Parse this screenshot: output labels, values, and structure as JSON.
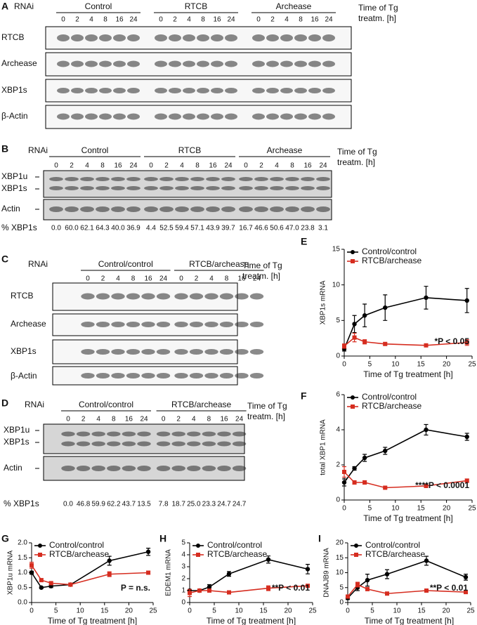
{
  "panels": {
    "A": {
      "letter": "A",
      "rnai": "RNAi",
      "groups": [
        "Control",
        "RTCB",
        "Archease"
      ],
      "times": [
        "0",
        "2",
        "4",
        "8",
        "16",
        "24"
      ],
      "time_label": [
        "Time of Tg",
        "treatm. [h]"
      ],
      "rows": [
        "RTCB",
        "Archease",
        "XBP1s",
        "β-Actin"
      ]
    },
    "B": {
      "letter": "B",
      "rnai": "RNAi",
      "groups": [
        "Control",
        "RTCB",
        "Archease"
      ],
      "times": [
        "0",
        "2",
        "4",
        "8",
        "16",
        "24"
      ],
      "time_label": [
        "Time of Tg",
        "treatm. [h]"
      ],
      "rows": [
        "XBP1u",
        "XBP1s",
        "Actin"
      ],
      "percent_label": "% XBP1s",
      "percent": [
        "0.0",
        "60.0",
        "62.1",
        "64.3",
        "40.0",
        "36.9",
        "4.4",
        "52.5",
        "59.4",
        "57.1",
        "43.9",
        "39.7",
        "16.7",
        "46.6",
        "50.6",
        "47.0",
        "23.8",
        "3.1"
      ]
    },
    "C": {
      "letter": "C",
      "rnai": "RNAi",
      "groups": [
        "Control/control",
        "RTCB/archease"
      ],
      "times": [
        "0",
        "2",
        "4",
        "8",
        "16",
        "24"
      ],
      "time_label": [
        "Time of Tg",
        "treatm. [h]"
      ],
      "rows": [
        "RTCB",
        "Archease",
        "XBP1s",
        "β-Actin"
      ]
    },
    "D": {
      "letter": "D",
      "rnai": "RNAi",
      "groups": [
        "Control/control",
        "RTCB/archease"
      ],
      "times": [
        "0",
        "2",
        "4",
        "8",
        "16",
        "24"
      ],
      "time_label": [
        "Time of Tg",
        "treatm. [h]"
      ],
      "rows": [
        "XBP1u",
        "XBP1s",
        "Actin"
      ],
      "percent_label": "% XBP1s",
      "percent": [
        "0.0",
        "46.8",
        "59.9",
        "62.2",
        "43.7",
        "13.5",
        "7.8",
        "18.7",
        "25.0",
        "23.3",
        "24.7",
        "24.7"
      ]
    }
  },
  "chart_data": [
    {
      "type": "line",
      "letter": "E",
      "x": [
        0,
        2,
        4,
        8,
        16,
        24
      ],
      "xlim": [
        0,
        25
      ],
      "xticks": [
        0,
        5,
        10,
        15,
        20,
        25
      ],
      "ylim": [
        0,
        15
      ],
      "yticks": [
        0,
        5,
        10,
        15
      ],
      "x_label": "Time of Tg treatment [h]",
      "y_label": "XBP1s mRNA",
      "annotation": "*P < 0.05",
      "series": [
        {
          "name": "Control/control",
          "color": "#000000",
          "marker": "circle",
          "values": [
            1.0,
            4.5,
            5.7,
            6.8,
            8.2,
            7.8
          ],
          "errors": [
            0.3,
            1.2,
            1.6,
            1.8,
            1.6,
            1.7
          ]
        },
        {
          "name": "RTCB/archease",
          "color": "#d62d20",
          "marker": "square",
          "values": [
            1.4,
            2.6,
            2.0,
            1.7,
            1.5,
            1.9
          ],
          "errors": [
            0.3,
            0.6,
            0.3,
            0.2,
            0.2,
            0.4
          ]
        }
      ]
    },
    {
      "type": "line",
      "letter": "F",
      "x": [
        0,
        2,
        4,
        8,
        16,
        24
      ],
      "xlim": [
        0,
        25
      ],
      "xticks": [
        0,
        5,
        10,
        15,
        20,
        25
      ],
      "ylim": [
        0,
        6
      ],
      "yticks": [
        0,
        2,
        4,
        6
      ],
      "x_label": "Time of Tg treatment [h]",
      "y_label": "total XBP1 mRNA",
      "annotation": "****P < 0.0001",
      "series": [
        {
          "name": "Control/control",
          "color": "#000000",
          "marker": "circle",
          "values": [
            1.0,
            1.8,
            2.4,
            2.8,
            4.0,
            3.6
          ],
          "errors": [
            0.2,
            0.1,
            0.2,
            0.2,
            0.3,
            0.2
          ]
        },
        {
          "name": "RTCB/archease",
          "color": "#d62d20",
          "marker": "square",
          "values": [
            1.6,
            1.0,
            1.0,
            0.7,
            0.8,
            1.1
          ],
          "errors": [
            0.3,
            0.1,
            0.1,
            0.05,
            0.05,
            0.1
          ]
        }
      ]
    },
    {
      "type": "line",
      "letter": "G",
      "x": [
        0,
        2,
        4,
        8,
        16,
        24
      ],
      "xlim": [
        0,
        25
      ],
      "xticks": [
        0,
        5,
        10,
        15,
        20,
        25
      ],
      "ylim": [
        0,
        2
      ],
      "yticks": [
        {
          "value": 0,
          "label": "0.0"
        },
        {
          "value": 0.5,
          "label": "0.5"
        },
        {
          "value": 1,
          "label": "1.0"
        },
        {
          "value": 1.5,
          "label": "1.5"
        },
        {
          "value": 2,
          "label": "2.0"
        }
      ],
      "x_label": "Time of Tg treatment [h]",
      "y_label": "XBP1u mRNA",
      "annotation": "P = n.s.",
      "series": [
        {
          "name": "Control/control",
          "color": "#000000",
          "marker": "circle",
          "values": [
            1.0,
            0.5,
            0.55,
            0.6,
            1.4,
            1.7
          ],
          "errors": [
            0.05,
            0.03,
            0.05,
            0.05,
            0.15,
            0.12
          ]
        },
        {
          "name": "RTCB/archease",
          "color": "#d62d20",
          "marker": "square",
          "values": [
            1.25,
            0.75,
            0.65,
            0.6,
            0.95,
            1.0
          ],
          "errors": [
            0.1,
            0.05,
            0.05,
            0.05,
            0.08,
            0.05
          ]
        }
      ]
    },
    {
      "type": "line",
      "letter": "H",
      "x": [
        0,
        2,
        4,
        8,
        16,
        24
      ],
      "xlim": [
        0,
        25
      ],
      "xticks": [
        0,
        5,
        10,
        15,
        20,
        25
      ],
      "ylim": [
        0,
        5
      ],
      "yticks": [
        0,
        1,
        2,
        3,
        4,
        5
      ],
      "x_label": "Time of Tg treatment [h]",
      "y_label": "EDEM1 mRNA",
      "annotation": "**P < 0.01",
      "series": [
        {
          "name": "Control/control",
          "color": "#000000",
          "marker": "circle",
          "values": [
            1.0,
            1.0,
            1.3,
            2.4,
            3.6,
            2.8
          ],
          "errors": [
            0.1,
            0.1,
            0.2,
            0.2,
            0.3,
            0.4
          ]
        },
        {
          "name": "RTCB/archease",
          "color": "#d62d20",
          "marker": "square",
          "values": [
            0.8,
            1.0,
            1.0,
            0.85,
            1.2,
            1.4
          ],
          "errors": [
            0.3,
            0.1,
            0.1,
            0.1,
            0.2,
            0.05
          ]
        }
      ]
    },
    {
      "type": "line",
      "letter": "I",
      "x": [
        0,
        2,
        4,
        8,
        16,
        24
      ],
      "xlim": [
        0,
        25
      ],
      "xticks": [
        0,
        5,
        10,
        15,
        20,
        25
      ],
      "ylim": [
        0,
        20
      ],
      "yticks": [
        0,
        5,
        10,
        15,
        20
      ],
      "x_label": "Time of Tg treatment [h]",
      "y_label": "DNAJB9 mRNA",
      "annotation": "**P < 0.01",
      "series": [
        {
          "name": "Control/control",
          "color": "#000000",
          "marker": "circle",
          "values": [
            1.5,
            5,
            7.5,
            9.5,
            14,
            8.5
          ],
          "errors": [
            0.5,
            1,
            2,
            1.5,
            1.5,
            1
          ]
        },
        {
          "name": "RTCB/archease",
          "color": "#d62d20",
          "marker": "square",
          "values": [
            2,
            6,
            4.5,
            3,
            4,
            3.5
          ],
          "errors": [
            0.5,
            0.8,
            0.5,
            0.3,
            0.5,
            0.3
          ]
        }
      ]
    }
  ]
}
